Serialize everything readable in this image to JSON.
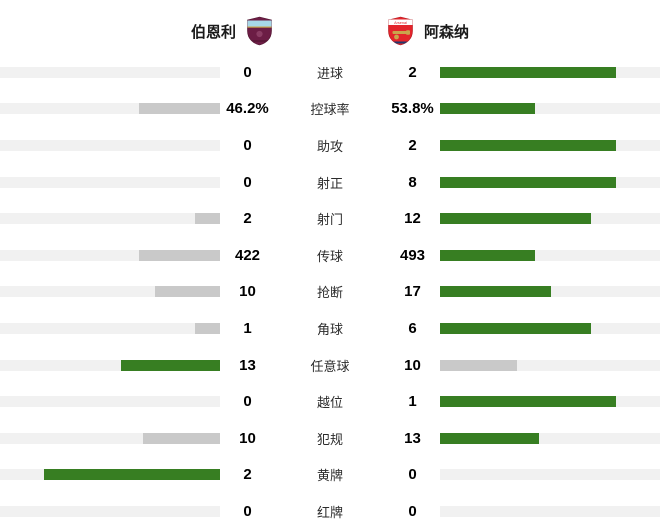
{
  "header": {
    "home_name": "伯恩利",
    "away_name": "阿森纳",
    "home_crest_icon": "burnley-crest",
    "away_crest_icon": "arsenal-crest"
  },
  "colors": {
    "win": "#377e22",
    "lose": "#c9c9c9",
    "track": "#f1f1f1",
    "burnley_claret": "#6C1D45",
    "burnley_blue": "#A7D8E8",
    "arsenal_red": "#E3242B",
    "arsenal_gold": "#C9A44C"
  },
  "stats": [
    {
      "label": "进球",
      "home": "0",
      "away": "2",
      "home_val": 0,
      "away_val": 2
    },
    {
      "label": "控球率",
      "home": "46.2%",
      "away": "53.8%",
      "home_val": 46.2,
      "away_val": 53.8
    },
    {
      "label": "助攻",
      "home": "0",
      "away": "2",
      "home_val": 0,
      "away_val": 2
    },
    {
      "label": "射正",
      "home": "0",
      "away": "8",
      "home_val": 0,
      "away_val": 8
    },
    {
      "label": "射门",
      "home": "2",
      "away": "12",
      "home_val": 2,
      "away_val": 12
    },
    {
      "label": "传球",
      "home": "422",
      "away": "493",
      "home_val": 422,
      "away_val": 493
    },
    {
      "label": "抢断",
      "home": "10",
      "away": "17",
      "home_val": 10,
      "away_val": 17
    },
    {
      "label": "角球",
      "home": "1",
      "away": "6",
      "home_val": 1,
      "away_val": 6
    },
    {
      "label": "任意球",
      "home": "13",
      "away": "10",
      "home_val": 13,
      "away_val": 10
    },
    {
      "label": "越位",
      "home": "0",
      "away": "1",
      "home_val": 0,
      "away_val": 1
    },
    {
      "label": "犯规",
      "home": "10",
      "away": "13",
      "home_val": 10,
      "away_val": 13
    },
    {
      "label": "黄牌",
      "home": "2",
      "away": "0",
      "home_val": 2,
      "away_val": 0
    },
    {
      "label": "红牌",
      "home": "0",
      "away": "0",
      "home_val": 0,
      "away_val": 0
    }
  ],
  "chart_data": {
    "type": "bar",
    "title": "伯恩利 vs 阿森纳 比赛数据",
    "categories": [
      "进球",
      "控球率",
      "助攻",
      "射正",
      "射门",
      "传球",
      "抢断",
      "角球",
      "任意球",
      "越位",
      "犯规",
      "黄牌",
      "红牌"
    ],
    "series": [
      {
        "name": "伯恩利",
        "values": [
          0,
          46.2,
          0,
          0,
          2,
          422,
          10,
          1,
          13,
          0,
          10,
          2,
          0
        ]
      },
      {
        "name": "阿森纳",
        "values": [
          2,
          53.8,
          2,
          8,
          12,
          493,
          17,
          6,
          10,
          1,
          13,
          0,
          0
        ]
      }
    ],
    "layout": "paired diverging horizontal bars, labels centered, winner bar green, loser bar gray, bar length = value/(home+away)",
    "legend_position": "none",
    "grid": false
  }
}
